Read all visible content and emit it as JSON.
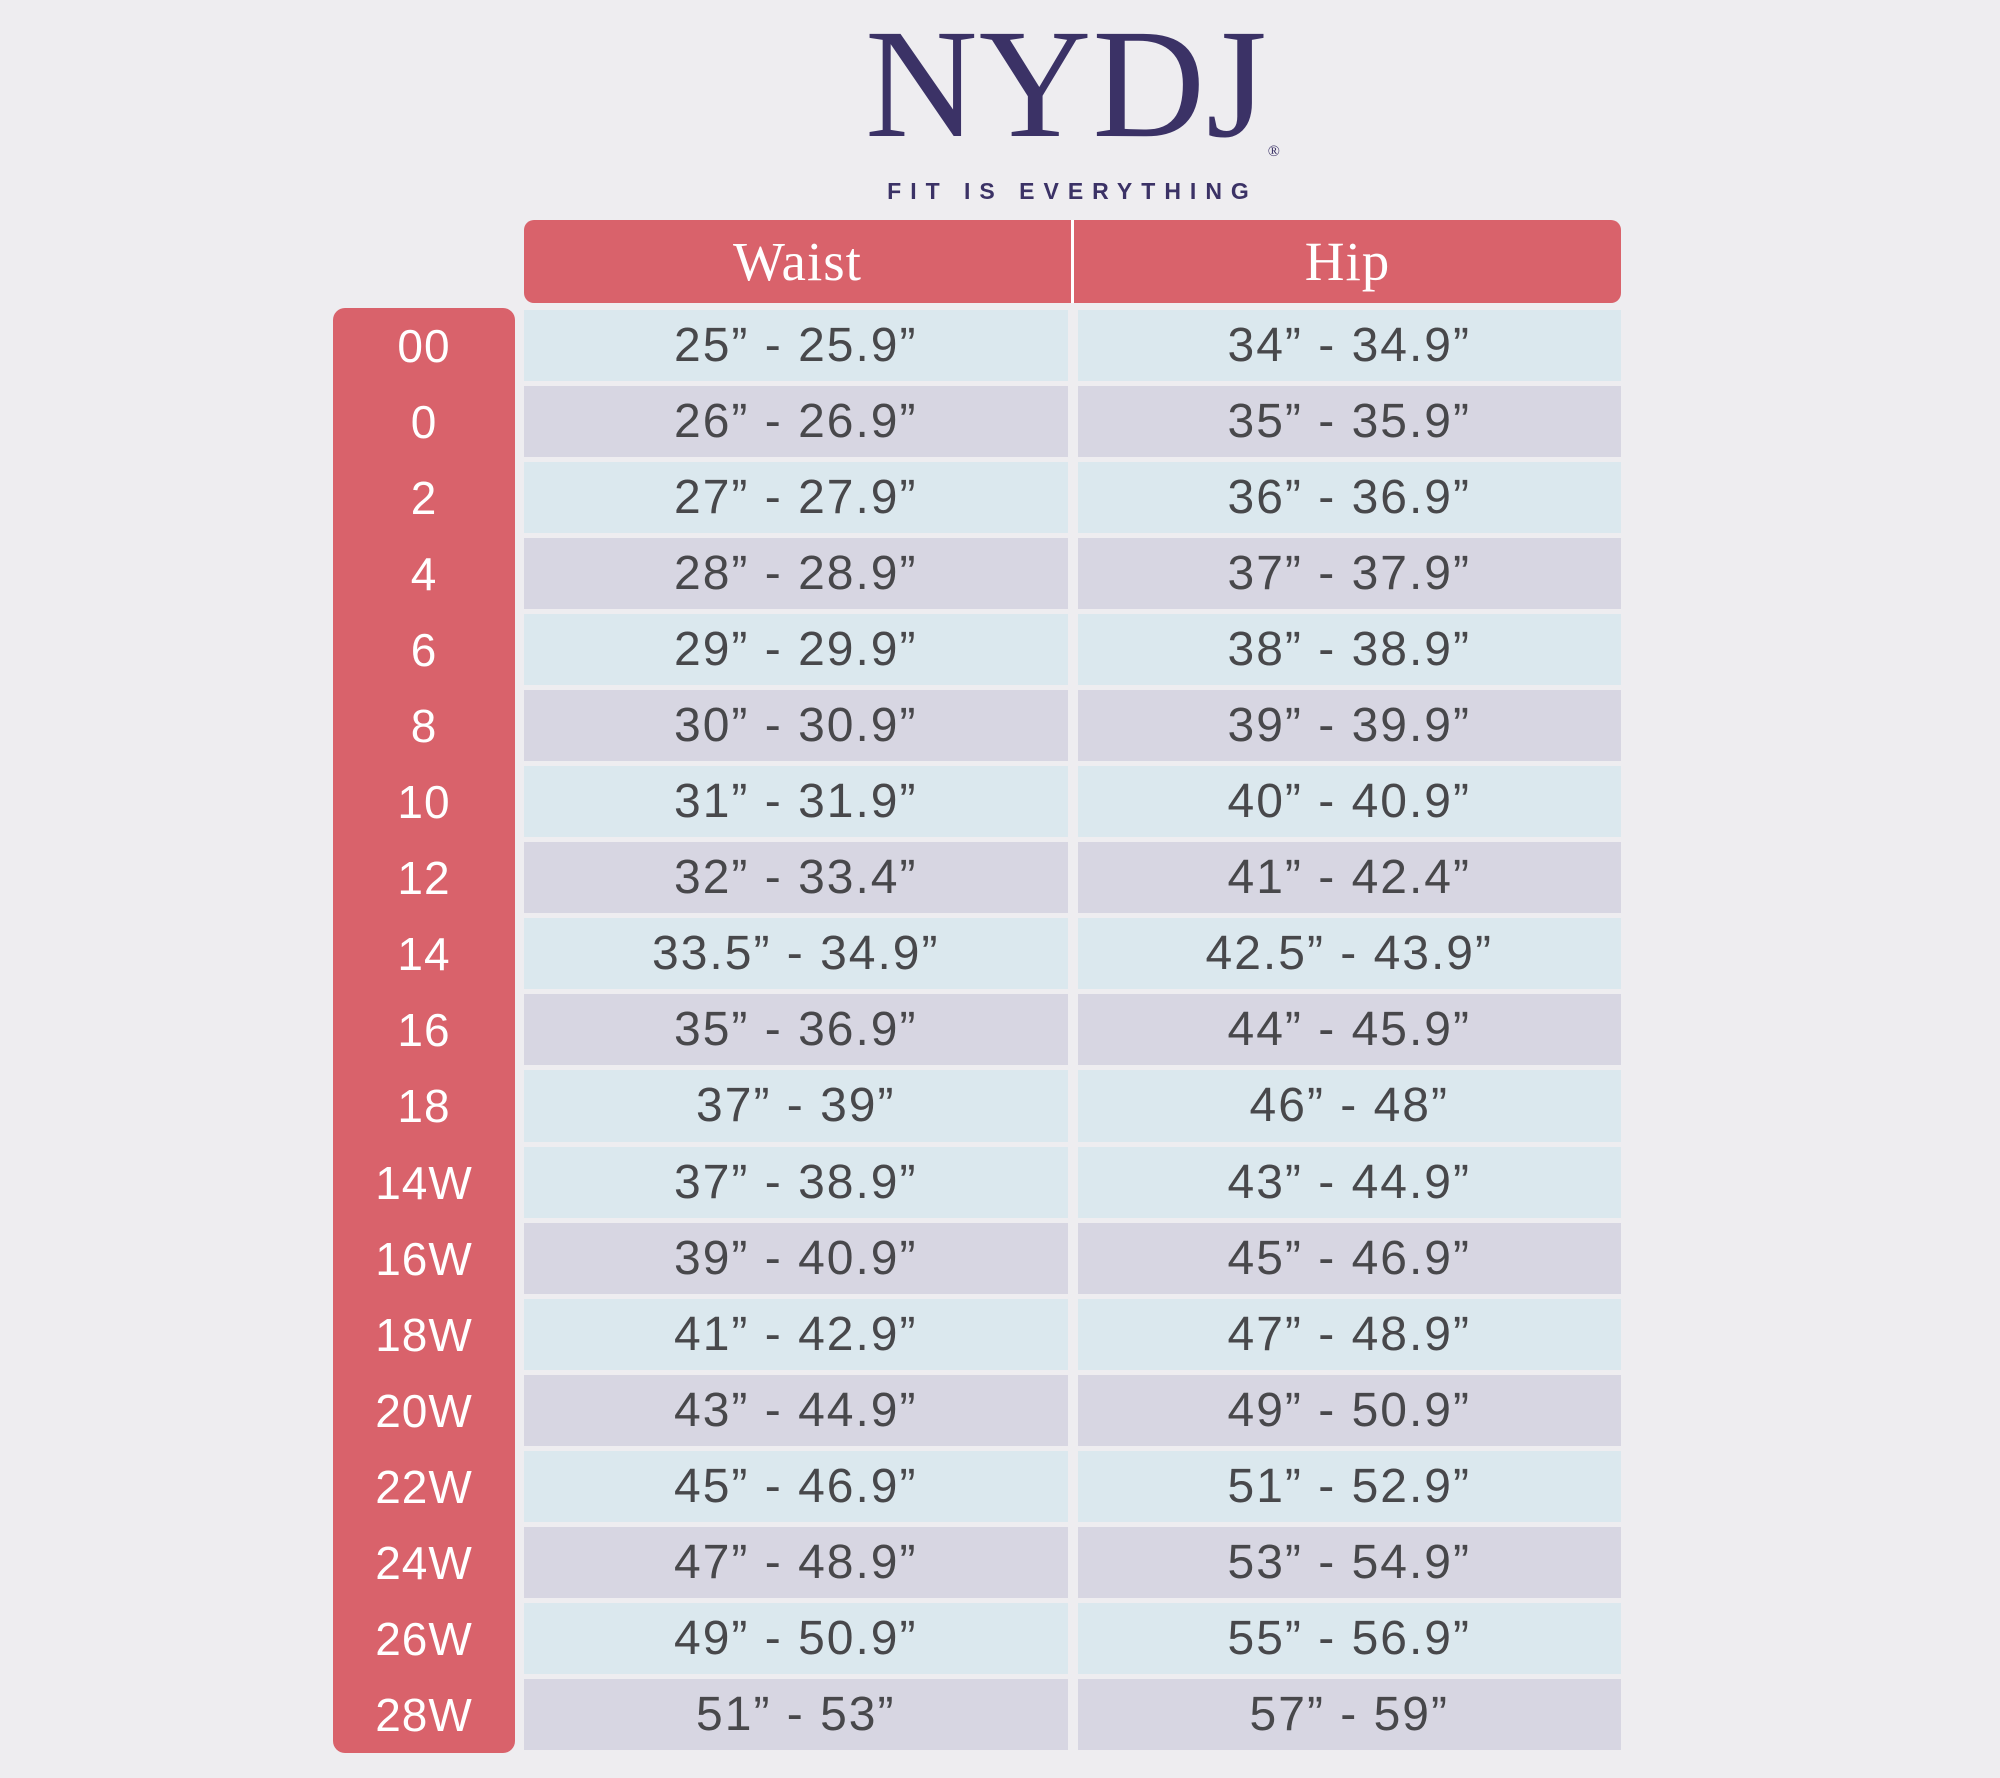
{
  "brand": {
    "logo_text": "NYDJ",
    "registered_mark": "®",
    "tagline": "FIT IS EVERYTHING"
  },
  "colors": {
    "background": "#eeedf0",
    "coral": "#d9626b",
    "row_blue": "#dbe8ee",
    "row_lavender": "#d7d6e2",
    "logo": "#3b3266",
    "text": "#48484b",
    "header_text": "#ffffff"
  },
  "chart_data": {
    "type": "table",
    "columns": [
      "Waist",
      "Hip"
    ],
    "size_column_values": [
      "00",
      "0",
      "2",
      "4",
      "6",
      "8",
      "10",
      "12",
      "14",
      "16",
      "18",
      "14W",
      "16W",
      "18W",
      "20W",
      "22W",
      "24W",
      "26W",
      "28W"
    ],
    "rows": [
      {
        "size": "00",
        "waist": "25” - 25.9”",
        "hip": "34” - 34.9”"
      },
      {
        "size": "0",
        "waist": "26” - 26.9”",
        "hip": "35” - 35.9”"
      },
      {
        "size": "2",
        "waist": "27” - 27.9”",
        "hip": "36” - 36.9”"
      },
      {
        "size": "4",
        "waist": "28” - 28.9”",
        "hip": "37” - 37.9”"
      },
      {
        "size": "6",
        "waist": "29” - 29.9”",
        "hip": "38” - 38.9”"
      },
      {
        "size": "8",
        "waist": "30” - 30.9”",
        "hip": "39” - 39.9”"
      },
      {
        "size": "10",
        "waist": "31” - 31.9”",
        "hip": "40” - 40.9”"
      },
      {
        "size": "12",
        "waist": "32” - 33.4”",
        "hip": "41” - 42.4”"
      },
      {
        "size": "14",
        "waist": "33.5” - 34.9”",
        "hip": "42.5” - 43.9”"
      },
      {
        "size": "16",
        "waist": "35” - 36.9”",
        "hip": "44” - 45.9”"
      },
      {
        "size": "18",
        "waist": "37” - 39”",
        "hip": "46” - 48”"
      },
      {
        "size": "14W",
        "waist": "37” - 38.9”",
        "hip": "43” - 44.9”"
      },
      {
        "size": "16W",
        "waist": "39” - 40.9”",
        "hip": "45” - 46.9”"
      },
      {
        "size": "18W",
        "waist": "41” - 42.9”",
        "hip": "47” - 48.9”"
      },
      {
        "size": "20W",
        "waist": "43” - 44.9”",
        "hip": "49” - 50.9”"
      },
      {
        "size": "22W",
        "waist": "45” - 46.9”",
        "hip": "51” - 52.9”"
      },
      {
        "size": "24W",
        "waist": "47” - 48.9”",
        "hip": "53” - 54.9”"
      },
      {
        "size": "26W",
        "waist": "49” - 50.9”",
        "hip": "55” - 56.9”"
      },
      {
        "size": "28W",
        "waist": "51” - 53”",
        "hip": "57” - 59”"
      }
    ]
  }
}
